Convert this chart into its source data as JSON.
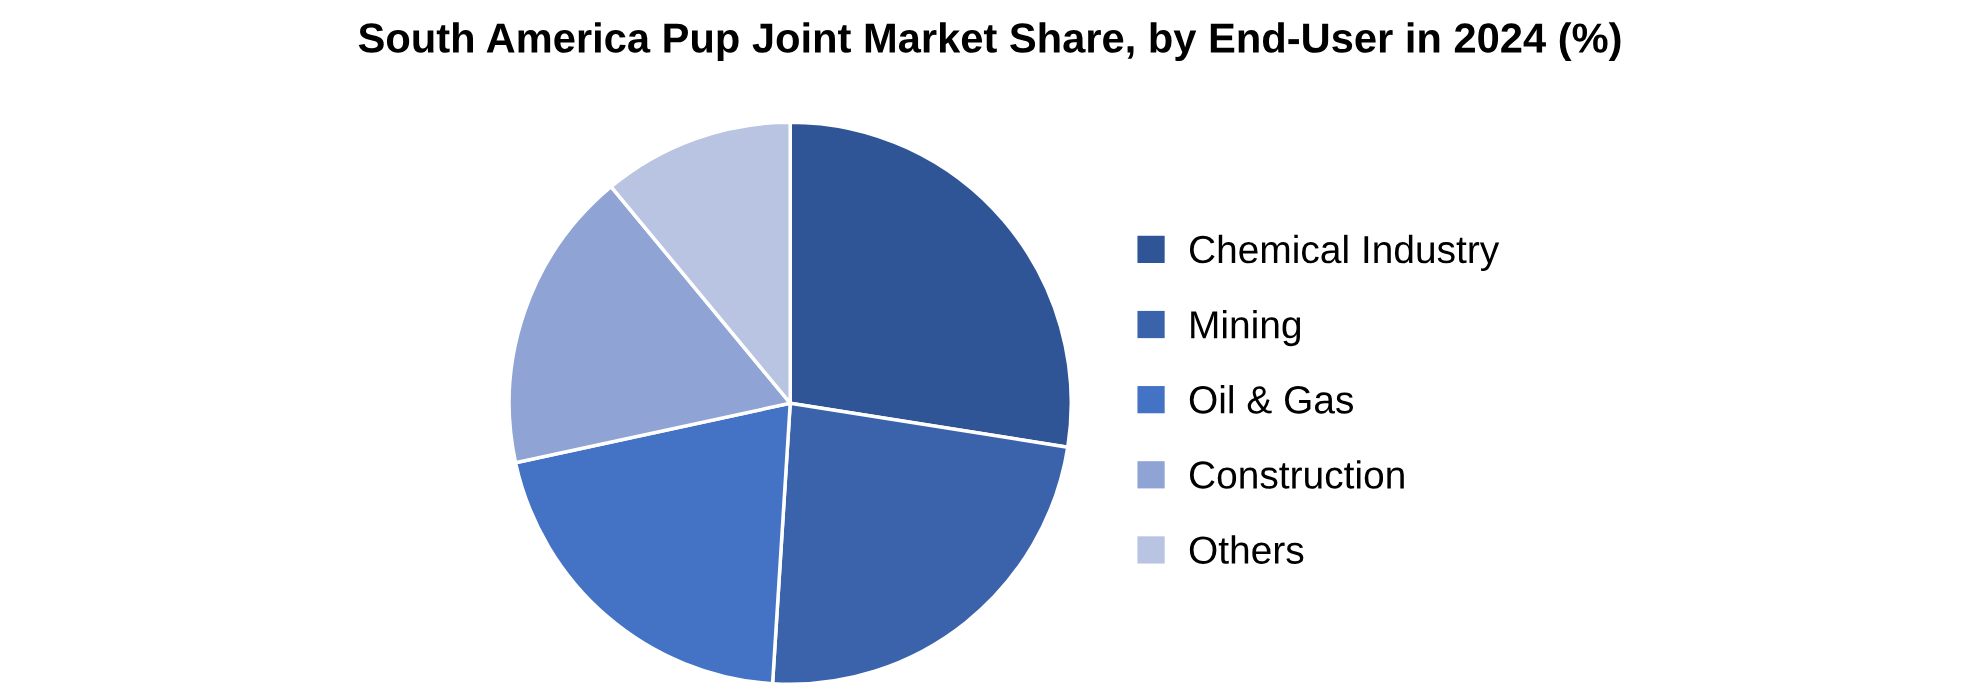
{
  "chart_data": {
    "type": "pie",
    "title": "South America Pup Joint Market Share, by End-User in 2024 (%)",
    "categories": [
      "Chemical Industry",
      "Mining",
      "Oil & Gas",
      "Construction",
      "Others"
    ],
    "values": [
      27.5,
      23.5,
      20.6,
      17.4,
      11.0
    ],
    "colors": [
      "#2f5597",
      "#3b63ac",
      "#4472c4",
      "#8fa3d4",
      "#b9c4e3"
    ],
    "legend": "right"
  }
}
